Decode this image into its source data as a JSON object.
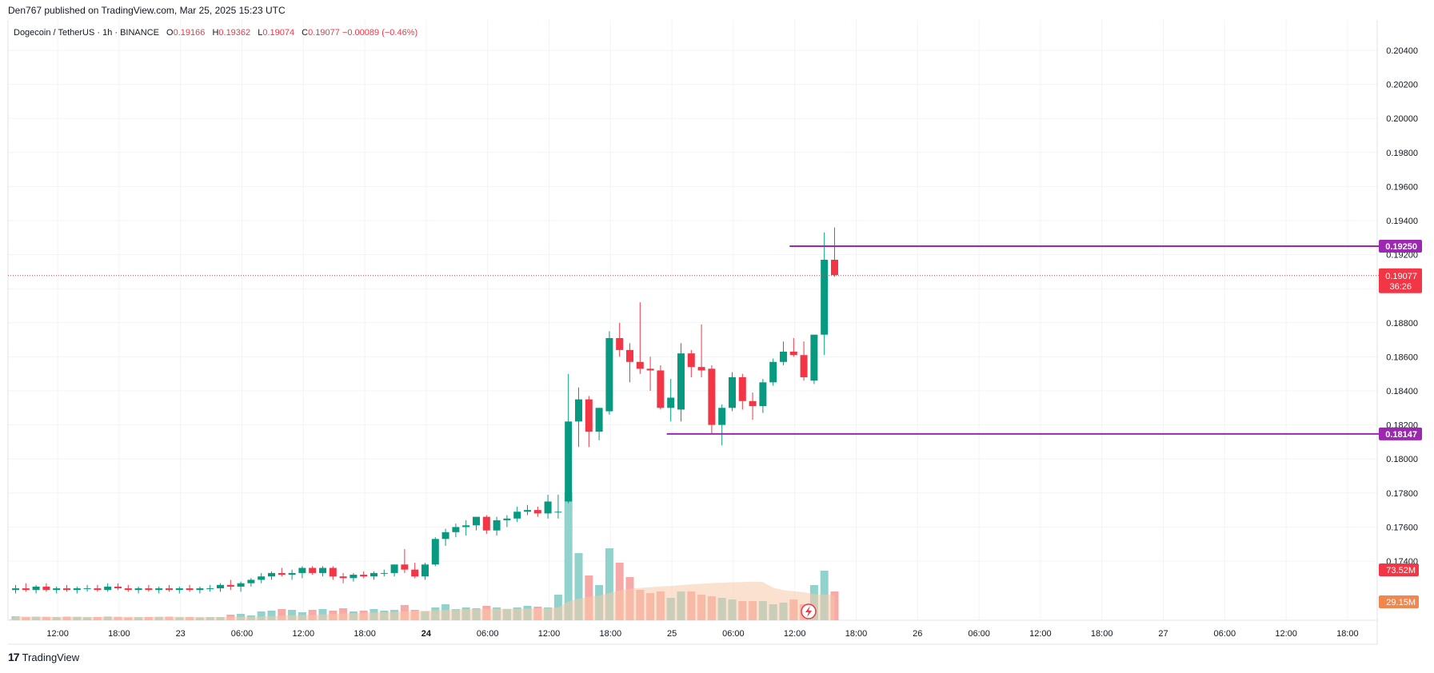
{
  "header": {
    "published": "Den767 published on TradingView.com, Mar 25, 2025 15:23 UTC"
  },
  "legend": {
    "symbol": "Dogecoin / TetherUS · 1h · BINANCE",
    "o_label": "O",
    "o": "0.19166",
    "h_label": "H",
    "h": "0.19362",
    "l_label": "L",
    "l": "0.19074",
    "c_label": "C",
    "c": "0.19077",
    "change": "−0.00089 (−0.46%)"
  },
  "footer": {
    "brand": "TradingView",
    "logo": "17"
  },
  "colors": {
    "up": "#089981",
    "down": "#f23645",
    "vol_up": "#92d2cc",
    "vol_down": "#f7a9a7",
    "level": "#9c27b0",
    "vol_ma": "#f7c9a8",
    "vol_ma_tag": "#f1874d"
  },
  "chart_data": {
    "type": "candlestick",
    "y_ticks": [
      "0.20400",
      "0.20200",
      "0.20000",
      "0.19800",
      "0.19600",
      "0.19400",
      "0.19200",
      "0.19000",
      "0.18800",
      "0.18600",
      "0.18400",
      "0.18200",
      "0.18000",
      "0.17800",
      "0.17600",
      "0.17400"
    ],
    "ylim": [
      0.1725,
      0.2045
    ],
    "x_ticks": [
      {
        "label": "12:00",
        "i": 2
      },
      {
        "label": "18:00",
        "i": 8
      },
      {
        "label": "23",
        "i": 14
      },
      {
        "label": "06:00",
        "i": 20
      },
      {
        "label": "12:00",
        "i": 26
      },
      {
        "label": "18:00",
        "i": 32
      },
      {
        "label": "24",
        "i": 38,
        "bold": true
      },
      {
        "label": "06:00",
        "i": 44
      },
      {
        "label": "12:00",
        "i": 50
      },
      {
        "label": "18:00",
        "i": 56
      },
      {
        "label": "25",
        "i": 62
      },
      {
        "label": "06:00",
        "i": 68
      },
      {
        "label": "12:00",
        "i": 74
      },
      {
        "label": "18:00",
        "i": 80
      },
      {
        "label": "26",
        "i": 86
      },
      {
        "label": "06:00",
        "i": 92
      },
      {
        "label": "12:00",
        "i": 98
      },
      {
        "label": "18:00",
        "i": 104
      },
      {
        "label": "27",
        "i": 110
      },
      {
        "label": "06:00",
        "i": 116
      },
      {
        "label": "12:00",
        "i": 122
      },
      {
        "label": "18:00",
        "i": 128
      }
    ],
    "candles": [
      [
        0.1723,
        0.1726,
        0.1721,
        0.1724
      ],
      [
        0.1724,
        0.1727,
        0.1722,
        0.1723
      ],
      [
        0.1723,
        0.1726,
        0.1721,
        0.1725
      ],
      [
        0.1725,
        0.1727,
        0.1722,
        0.1723
      ],
      [
        0.1723,
        0.1725,
        0.1721,
        0.1724
      ],
      [
        0.1724,
        0.1726,
        0.1722,
        0.1723
      ],
      [
        0.1723,
        0.1725,
        0.1721,
        0.1724
      ],
      [
        0.1724,
        0.1726,
        0.1722,
        0.1724
      ],
      [
        0.1724,
        0.1726,
        0.1722,
        0.1723
      ],
      [
        0.1723,
        0.1727,
        0.1722,
        0.1725
      ],
      [
        0.1725,
        0.1727,
        0.1723,
        0.1724
      ],
      [
        0.1724,
        0.1726,
        0.1722,
        0.1723
      ],
      [
        0.1723,
        0.1725,
        0.1721,
        0.1724
      ],
      [
        0.1724,
        0.1726,
        0.1722,
        0.1723
      ],
      [
        0.1723,
        0.1725,
        0.1721,
        0.1724
      ],
      [
        0.1724,
        0.1726,
        0.1722,
        0.1723
      ],
      [
        0.1723,
        0.1725,
        0.1721,
        0.1724
      ],
      [
        0.1724,
        0.1726,
        0.1722,
        0.1723
      ],
      [
        0.1723,
        0.1725,
        0.1721,
        0.1724
      ],
      [
        0.1724,
        0.1726,
        0.1722,
        0.1724
      ],
      [
        0.1724,
        0.1727,
        0.1722,
        0.1726
      ],
      [
        0.1726,
        0.1729,
        0.1723,
        0.1725
      ],
      [
        0.1725,
        0.1728,
        0.1722,
        0.1727
      ],
      [
        0.1727,
        0.173,
        0.1725,
        0.1729
      ],
      [
        0.1729,
        0.1733,
        0.1727,
        0.1731
      ],
      [
        0.1731,
        0.1734,
        0.1729,
        0.1733
      ],
      [
        0.1733,
        0.1736,
        0.1731,
        0.1732
      ],
      [
        0.1732,
        0.1735,
        0.1729,
        0.1733
      ],
      [
        0.1733,
        0.1737,
        0.173,
        0.1736
      ],
      [
        0.1736,
        0.1737,
        0.1732,
        0.1733
      ],
      [
        0.1733,
        0.1737,
        0.1731,
        0.1736
      ],
      [
        0.1736,
        0.1737,
        0.1729,
        0.1731
      ],
      [
        0.1731,
        0.1733,
        0.1727,
        0.173
      ],
      [
        0.173,
        0.1733,
        0.1728,
        0.1732
      ],
      [
        0.1732,
        0.1734,
        0.173,
        0.1731
      ],
      [
        0.1731,
        0.1734,
        0.1729,
        0.1733
      ],
      [
        0.1733,
        0.1735,
        0.1731,
        0.1733
      ],
      [
        0.1733,
        0.1738,
        0.1731,
        0.1738
      ],
      [
        0.1738,
        0.1747,
        0.1733,
        0.1735
      ],
      [
        0.1735,
        0.1739,
        0.173,
        0.1731
      ],
      [
        0.1731,
        0.1739,
        0.1729,
        0.1738
      ],
      [
        0.1738,
        0.1754,
        0.1737,
        0.1753
      ],
      [
        0.1753,
        0.1759,
        0.1749,
        0.1757
      ],
      [
        0.1757,
        0.1762,
        0.1754,
        0.176
      ],
      [
        0.176,
        0.1764,
        0.1755,
        0.1761
      ],
      [
        0.1761,
        0.1766,
        0.1758,
        0.1766
      ],
      [
        0.1766,
        0.1767,
        0.1756,
        0.1758
      ],
      [
        0.1758,
        0.1766,
        0.1755,
        0.1764
      ],
      [
        0.1764,
        0.1767,
        0.176,
        0.1765
      ],
      [
        0.1765,
        0.1772,
        0.1763,
        0.1769
      ],
      [
        0.1769,
        0.1773,
        0.1767,
        0.177
      ],
      [
        0.177,
        0.1772,
        0.1766,
        0.1768
      ],
      [
        0.1768,
        0.1779,
        0.1765,
        0.1775
      ],
      [
        0.1769,
        0.1779,
        0.1765,
        0.1769
      ],
      [
        0.1775,
        0.185,
        0.1774,
        0.1822
      ],
      [
        0.1822,
        0.1842,
        0.1807,
        0.1835
      ],
      [
        0.1835,
        0.1837,
        0.1807,
        0.1816
      ],
      [
        0.1816,
        0.183,
        0.1811,
        0.183
      ],
      [
        0.1828,
        0.1875,
        0.1826,
        0.1871
      ],
      [
        0.1871,
        0.188,
        0.186,
        0.1864
      ],
      [
        0.1864,
        0.1868,
        0.1845,
        0.1857
      ],
      [
        0.1857,
        0.1892,
        0.185,
        0.1853
      ],
      [
        0.1853,
        0.186,
        0.184,
        0.1852
      ],
      [
        0.1852,
        0.1855,
        0.1829,
        0.183
      ],
      [
        0.183,
        0.1847,
        0.1822,
        0.1836
      ],
      [
        0.1829,
        0.1868,
        0.1822,
        0.1862
      ],
      [
        0.1862,
        0.1864,
        0.1848,
        0.1854
      ],
      [
        0.1854,
        0.1879,
        0.1848,
        0.1852
      ],
      [
        0.1853,
        0.1855,
        0.1815,
        0.182
      ],
      [
        0.182,
        0.1832,
        0.1808,
        0.183
      ],
      [
        0.183,
        0.1851,
        0.1828,
        0.1848
      ],
      [
        0.1848,
        0.185,
        0.1829,
        0.1834
      ],
      [
        0.1834,
        0.1839,
        0.1823,
        0.1831
      ],
      [
        0.1831,
        0.1847,
        0.1827,
        0.1845
      ],
      [
        0.1845,
        0.1859,
        0.1843,
        0.1857
      ],
      [
        0.1857,
        0.1869,
        0.1855,
        0.1863
      ],
      [
        0.1863,
        0.1871,
        0.186,
        0.1861
      ],
      [
        0.1861,
        0.1869,
        0.1846,
        0.1848
      ],
      [
        0.1846,
        0.1872,
        0.1844,
        0.1873
      ],
      [
        0.1873,
        0.1933,
        0.1861,
        0.1917
      ],
      [
        0.1917,
        0.1936,
        0.1907,
        0.1908
      ]
    ],
    "volumes": [
      2.5,
      2.0,
      2.2,
      2.1,
      2.0,
      2.2,
      2.1,
      1.9,
      2.0,
      2.3,
      2.1,
      1.8,
      1.9,
      2.0,
      2.1,
      2.2,
      1.9,
      2.0,
      1.8,
      2.0,
      2.0,
      3.5,
      4.0,
      3.0,
      5.5,
      6.0,
      7.0,
      6.5,
      5.0,
      6.5,
      7.0,
      6.0,
      7.5,
      5.5,
      6.0,
      7.0,
      6.0,
      6.5,
      9.5,
      6.5,
      5.5,
      8.0,
      10.0,
      7.0,
      8.0,
      7.5,
      9.0,
      8.0,
      7.0,
      8.0,
      9.0,
      8.5,
      8.0,
      16.0,
      80.0,
      42.0,
      28.0,
      22.0,
      45.0,
      36.0,
      27.0,
      19.0,
      17.0,
      18.0,
      14.0,
      18.0,
      18.0,
      16.0,
      15.0,
      14.0,
      13.0,
      12.0,
      12.0,
      12.0,
      10.0,
      11.0,
      13.0,
      10.0,
      22.0,
      31.0,
      18.0
    ],
    "vol_max": 90,
    "levels": [
      {
        "value": 0.1925,
        "label": "0.19250",
        "from": 76
      },
      {
        "value": 0.18147,
        "label": "0.18147",
        "from": 64
      }
    ],
    "last_price": {
      "value": 0.19077,
      "label": "0.19077",
      "countdown": "36:26"
    },
    "volume_tags": [
      {
        "label": "73.52M",
        "color": "#f23645"
      },
      {
        "label": "29.15M",
        "color": "#f1874d"
      }
    ]
  }
}
